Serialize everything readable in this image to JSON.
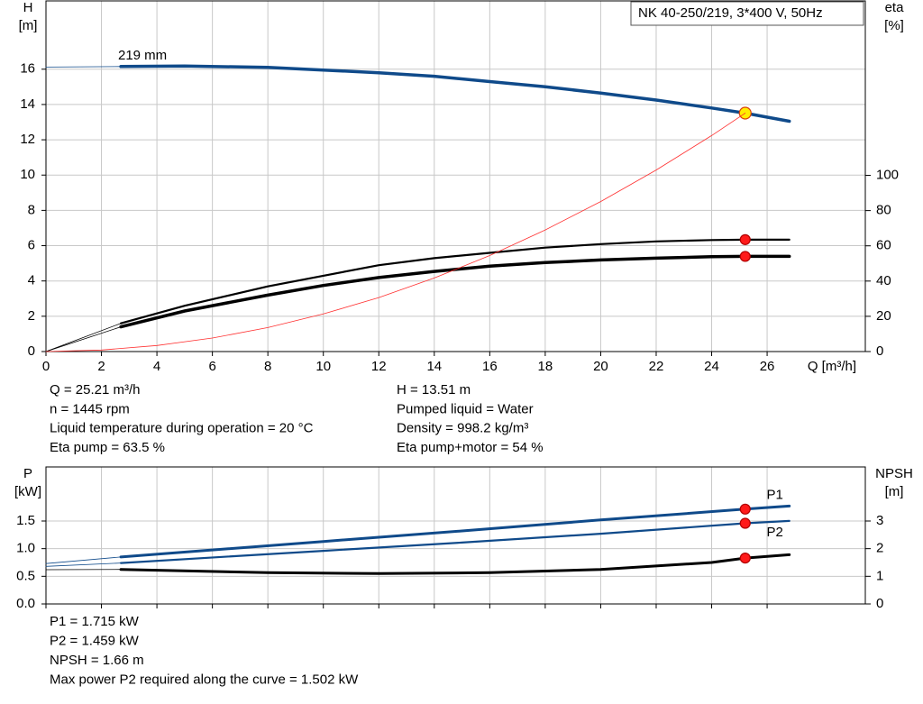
{
  "chart_data": [
    {
      "type": "line",
      "title": "NK 40-250/219, 3*400 V, 50Hz",
      "y_label": "H",
      "y_unit": "[m]",
      "y2_label": "eta",
      "y2_unit": "[%]",
      "x_label": "Q [m³/h]",
      "xlim": [
        0,
        29.54
      ],
      "xticks": [
        0,
        2,
        4,
        6,
        8,
        10,
        12,
        14,
        16,
        18,
        20,
        22,
        24,
        26
      ],
      "ylim": [
        0,
        19.87
      ],
      "yticks": [
        0,
        2,
        4,
        6,
        8,
        10,
        12,
        14,
        16
      ],
      "y2lim": [
        0,
        199
      ],
      "y2ticks": [
        0,
        20,
        40,
        60,
        80,
        100
      ],
      "grid": true,
      "show_xtick_labels": true,
      "duty_x": 25.21,
      "series": [
        {
          "name": "219 mm",
          "label_at": "start-above",
          "color": "#0f4a8a",
          "style": "thick",
          "marker_color": "#ffee00",
          "marker_stroke": "#d9400a",
          "x": [
            0,
            2.7,
            5,
            8,
            10,
            12,
            14,
            16,
            18,
            20,
            22,
            24,
            25.21,
            26.8
          ],
          "values": [
            16.12,
            16.15,
            16.18,
            16.1,
            15.95,
            15.8,
            15.6,
            15.3,
            15.0,
            14.65,
            14.25,
            13.8,
            13.51,
            13.05
          ]
        },
        {
          "axis": "y2",
          "color": "#000000",
          "style": "medium",
          "marker_color": "#ff1a1a",
          "marker_stroke": "#b00000",
          "x": [
            0,
            2.7,
            5,
            8,
            10,
            12,
            14,
            16,
            18,
            20,
            22,
            24,
            25.21,
            26.8
          ],
          "values": [
            0,
            16,
            26,
            37,
            43,
            49,
            53,
            56,
            59,
            61,
            62.5,
            63.3,
            63.5,
            63.5
          ]
        },
        {
          "axis": "y2",
          "color": "#000000",
          "style": "thick",
          "marker_color": "#ff1a1a",
          "marker_stroke": "#b00000",
          "x": [
            0,
            2.7,
            5,
            8,
            10,
            12,
            14,
            16,
            18,
            20,
            22,
            24,
            25.21,
            26.8
          ],
          "values": [
            0,
            14,
            23,
            32,
            37.5,
            42,
            45.5,
            48.5,
            50.5,
            52,
            53,
            53.8,
            54,
            54
          ]
        },
        {
          "color": "#ff3030",
          "style": "hair",
          "x": [
            0,
            2,
            4,
            6,
            8,
            10,
            12,
            14,
            16,
            18,
            20,
            22,
            24,
            25.21
          ],
          "values": [
            0,
            0.085,
            0.34,
            0.765,
            1.36,
            2.13,
            3.06,
            4.17,
            5.44,
            6.89,
            8.5,
            10.29,
            12.24,
            13.51
          ]
        }
      ]
    },
    {
      "type": "line",
      "y_label": "P",
      "y_unit": "[kW]",
      "y2_label": "NPSH",
      "y2_unit": "[m]",
      "xlim": [
        0,
        29.54
      ],
      "xticks": [
        0,
        2,
        4,
        6,
        8,
        10,
        12,
        14,
        16,
        18,
        20,
        22,
        24,
        26
      ],
      "ylim": [
        0,
        2.478
      ],
      "yticks": [
        {
          "value": 0,
          "label": "0.0"
        },
        {
          "value": 0.5,
          "label": "0.5"
        },
        {
          "value": 1,
          "label": "1.0"
        },
        {
          "value": 1.5,
          "label": "1.5"
        }
      ],
      "y2lim": [
        0,
        4.956
      ],
      "y2ticks": [
        0,
        1,
        2,
        3
      ],
      "grid": true,
      "show_xtick_labels": false,
      "duty_x": 25.21,
      "series": [
        {
          "name": "P1",
          "label_at": "end-above",
          "color": "#0f4a8a",
          "style": "medium-thick",
          "marker_color": "#ff1a1a",
          "marker_stroke": "#b00000",
          "x": [
            0,
            2.7,
            10,
            15,
            20,
            25.21,
            26.8
          ],
          "values": [
            0.73,
            0.85,
            1.13,
            1.32,
            1.52,
            1.715,
            1.77
          ]
        },
        {
          "name": "P2",
          "label_at": "end-below",
          "color": "#0f4a8a",
          "style": "medium",
          "marker_color": "#ff1a1a",
          "marker_stroke": "#b00000",
          "x": [
            0,
            2.7,
            10,
            15,
            20,
            25.21,
            26.8
          ],
          "values": [
            0.68,
            0.74,
            0.96,
            1.11,
            1.27,
            1.459,
            1.502
          ]
        },
        {
          "axis": "y2",
          "color": "#000000",
          "style": "medium-thick",
          "marker_color": "#ff1a1a",
          "marker_stroke": "#b00000",
          "x": [
            0,
            2.7,
            8,
            12,
            16,
            20,
            24,
            25.21,
            26.8
          ],
          "values": [
            1.24,
            1.25,
            1.13,
            1.1,
            1.13,
            1.25,
            1.5,
            1.66,
            1.78
          ]
        }
      ]
    }
  ],
  "info_top": {
    "left": [
      "Q = 25.21 m³/h",
      "n = 1445 rpm",
      "Liquid temperature during operation = 20 °C",
      "Eta pump = 63.5 %"
    ],
    "right": [
      "H = 13.51 m",
      "Pumped liquid = Water",
      "Density = 998.2 kg/m³",
      "Eta pump+motor = 54 %"
    ]
  },
  "info_bottom": [
    "P1 = 1.715 kW",
    "P2 = 1.459 kW",
    "NPSH = 1.66 m",
    "Max power P2 required along the curve = 1.502 kW"
  ]
}
